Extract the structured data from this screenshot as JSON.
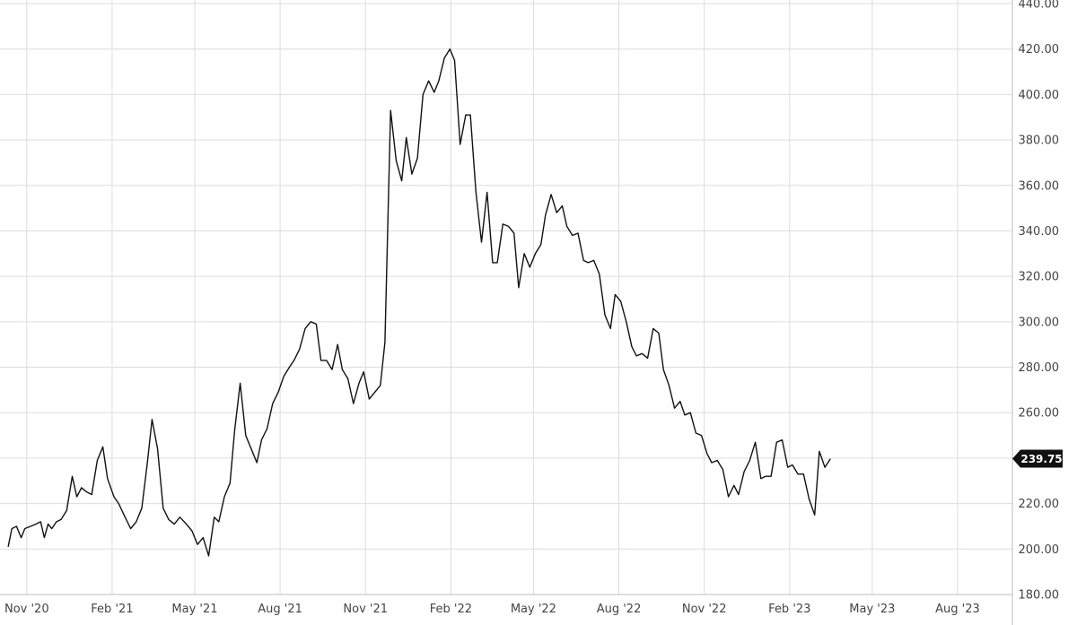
{
  "chart_data": {
    "type": "line",
    "grid": true,
    "yaxis_position": "right",
    "ylim": [
      180,
      440
    ],
    "xlim": [
      "2020-10-09",
      "2023-09-29"
    ],
    "y_ticks": [
      180,
      200,
      220,
      240,
      260,
      280,
      300,
      320,
      340,
      360,
      380,
      400,
      420,
      440
    ],
    "y_tick_labels": [
      "180.00",
      "200.00",
      "220.00",
      "240.00",
      "260.00",
      "280.00",
      "300.00",
      "320.00",
      "340.00",
      "360.00",
      "380.00",
      "400.00",
      "420.00",
      "440.00"
    ],
    "x_ticks": [
      {
        "date": "2020-11-01",
        "label": "Nov '20"
      },
      {
        "date": "2021-02-01",
        "label": "Feb '21"
      },
      {
        "date": "2021-05-01",
        "label": "May '21"
      },
      {
        "date": "2021-08-01",
        "label": "Aug '21"
      },
      {
        "date": "2021-11-01",
        "label": "Nov '21"
      },
      {
        "date": "2022-02-01",
        "label": "Feb '22"
      },
      {
        "date": "2022-05-01",
        "label": "May '22"
      },
      {
        "date": "2022-08-01",
        "label": "Aug '22"
      },
      {
        "date": "2022-11-01",
        "label": "Nov '22"
      },
      {
        "date": "2023-02-01",
        "label": "Feb '23"
      },
      {
        "date": "2023-05-01",
        "label": "May '23"
      },
      {
        "date": "2023-08-01",
        "label": "Aug '23"
      }
    ],
    "last_price": 239.75,
    "last_price_label": "239.75",
    "colors": {
      "line": "#111111",
      "grid": "#dcdcdc",
      "badge": "#111111",
      "badge_text": "#ffffff"
    },
    "series": [
      {
        "values": [
          [
            "2020-10-12",
            201
          ],
          [
            "2020-10-16",
            209
          ],
          [
            "2020-10-21",
            210
          ],
          [
            "2020-10-26",
            205
          ],
          [
            "2020-10-30",
            209
          ],
          [
            "2020-11-05",
            210
          ],
          [
            "2020-11-11",
            211
          ],
          [
            "2020-11-16",
            212
          ],
          [
            "2020-11-20",
            205
          ],
          [
            "2020-11-24",
            211
          ],
          [
            "2020-11-28",
            209
          ],
          [
            "2020-12-03",
            212
          ],
          [
            "2020-12-08",
            213
          ],
          [
            "2020-12-14",
            217
          ],
          [
            "2020-12-20",
            232
          ],
          [
            "2020-12-25",
            223
          ],
          [
            "2020-12-30",
            227
          ],
          [
            "2021-01-05",
            225
          ],
          [
            "2021-01-10",
            224
          ],
          [
            "2021-01-16",
            239
          ],
          [
            "2021-01-22",
            245
          ],
          [
            "2021-01-27",
            231
          ],
          [
            "2021-02-03",
            223
          ],
          [
            "2021-02-08",
            220
          ],
          [
            "2021-02-15",
            214
          ],
          [
            "2021-02-21",
            209
          ],
          [
            "2021-02-27",
            212
          ],
          [
            "2021-03-05",
            218
          ],
          [
            "2021-03-11",
            238
          ],
          [
            "2021-03-16",
            257
          ],
          [
            "2021-03-22",
            244
          ],
          [
            "2021-03-28",
            218
          ],
          [
            "2021-04-03",
            213
          ],
          [
            "2021-04-09",
            211
          ],
          [
            "2021-04-15",
            214
          ],
          [
            "2021-04-22",
            211
          ],
          [
            "2021-04-28",
            208
          ],
          [
            "2021-05-04",
            202
          ],
          [
            "2021-05-10",
            205
          ],
          [
            "2021-05-16",
            197
          ],
          [
            "2021-05-22",
            214
          ],
          [
            "2021-05-27",
            212
          ],
          [
            "2021-06-02",
            223
          ],
          [
            "2021-06-08",
            229
          ],
          [
            "2021-06-13",
            252
          ],
          [
            "2021-06-19",
            273
          ],
          [
            "2021-06-25",
            250
          ],
          [
            "2021-07-01",
            244
          ],
          [
            "2021-07-07",
            238
          ],
          [
            "2021-07-12",
            248
          ],
          [
            "2021-07-18",
            253
          ],
          [
            "2021-07-24",
            264
          ],
          [
            "2021-07-30",
            269
          ],
          [
            "2021-08-05",
            276
          ],
          [
            "2021-08-11",
            280
          ],
          [
            "2021-08-16",
            283
          ],
          [
            "2021-08-22",
            288
          ],
          [
            "2021-08-28",
            297
          ],
          [
            "2021-09-03",
            300
          ],
          [
            "2021-09-09",
            299
          ],
          [
            "2021-09-14",
            283
          ],
          [
            "2021-09-20",
            283
          ],
          [
            "2021-09-26",
            279
          ],
          [
            "2021-10-02",
            290
          ],
          [
            "2021-10-07",
            279
          ],
          [
            "2021-10-13",
            275
          ],
          [
            "2021-10-19",
            264
          ],
          [
            "2021-10-25",
            273
          ],
          [
            "2021-10-30",
            278
          ],
          [
            "2021-11-05",
            266
          ],
          [
            "2021-11-11",
            269
          ],
          [
            "2021-11-17",
            272
          ],
          [
            "2021-11-22",
            291
          ],
          [
            "2021-11-28",
            393
          ],
          [
            "2021-12-04",
            371
          ],
          [
            "2021-12-10",
            362
          ],
          [
            "2021-12-15",
            381
          ],
          [
            "2021-12-21",
            365
          ],
          [
            "2021-12-27",
            372
          ],
          [
            "2022-01-02",
            400
          ],
          [
            "2022-01-08",
            406
          ],
          [
            "2022-01-14",
            401
          ],
          [
            "2022-01-19",
            406
          ],
          [
            "2022-01-25",
            416
          ],
          [
            "2022-01-31",
            420
          ],
          [
            "2022-02-05",
            415
          ],
          [
            "2022-02-11",
            378
          ],
          [
            "2022-02-17",
            391
          ],
          [
            "2022-02-22",
            391
          ],
          [
            "2022-02-28",
            357
          ],
          [
            "2022-03-06",
            335
          ],
          [
            "2022-03-12",
            357
          ],
          [
            "2022-03-18",
            326
          ],
          [
            "2022-03-23",
            326
          ],
          [
            "2022-03-29",
            343
          ],
          [
            "2022-04-04",
            342
          ],
          [
            "2022-04-10",
            339
          ],
          [
            "2022-04-15",
            315
          ],
          [
            "2022-04-21",
            330
          ],
          [
            "2022-04-27",
            324
          ],
          [
            "2022-05-03",
            330
          ],
          [
            "2022-05-09",
            334
          ],
          [
            "2022-05-14",
            347
          ],
          [
            "2022-05-20",
            356
          ],
          [
            "2022-05-26",
            348
          ],
          [
            "2022-06-01",
            351
          ],
          [
            "2022-06-06",
            342
          ],
          [
            "2022-06-12",
            338
          ],
          [
            "2022-06-18",
            339
          ],
          [
            "2022-06-24",
            327
          ],
          [
            "2022-06-29",
            326
          ],
          [
            "2022-07-05",
            327
          ],
          [
            "2022-07-11",
            321
          ],
          [
            "2022-07-17",
            303
          ],
          [
            "2022-07-23",
            297
          ],
          [
            "2022-07-28",
            312
          ],
          [
            "2022-08-03",
            309
          ],
          [
            "2022-08-09",
            300
          ],
          [
            "2022-08-15",
            289
          ],
          [
            "2022-08-20",
            285
          ],
          [
            "2022-08-26",
            286
          ],
          [
            "2022-09-01",
            284
          ],
          [
            "2022-09-07",
            297
          ],
          [
            "2022-09-13",
            295
          ],
          [
            "2022-09-18",
            279
          ],
          [
            "2022-09-24",
            272
          ],
          [
            "2022-09-30",
            262
          ],
          [
            "2022-10-06",
            265
          ],
          [
            "2022-10-11",
            259
          ],
          [
            "2022-10-17",
            260
          ],
          [
            "2022-10-23",
            251
          ],
          [
            "2022-10-29",
            250
          ],
          [
            "2022-11-04",
            242
          ],
          [
            "2022-11-09",
            238
          ],
          [
            "2022-11-15",
            239
          ],
          [
            "2022-11-21",
            235
          ],
          [
            "2022-11-27",
            223
          ],
          [
            "2022-12-03",
            228
          ],
          [
            "2022-12-08",
            224
          ],
          [
            "2022-12-14",
            234
          ],
          [
            "2022-12-20",
            239
          ],
          [
            "2022-12-26",
            247
          ],
          [
            "2023-01-01",
            231
          ],
          [
            "2023-01-06",
            232
          ],
          [
            "2023-01-12",
            232
          ],
          [
            "2023-01-18",
            247
          ],
          [
            "2023-01-24",
            248
          ],
          [
            "2023-01-30",
            236
          ],
          [
            "2023-02-04",
            237
          ],
          [
            "2023-02-10",
            233
          ],
          [
            "2023-02-16",
            233
          ],
          [
            "2023-02-22",
            222
          ],
          [
            "2023-02-28",
            215
          ],
          [
            "2023-03-05",
            243
          ],
          [
            "2023-03-11",
            236
          ],
          [
            "2023-03-17",
            239.75
          ]
        ]
      }
    ]
  }
}
